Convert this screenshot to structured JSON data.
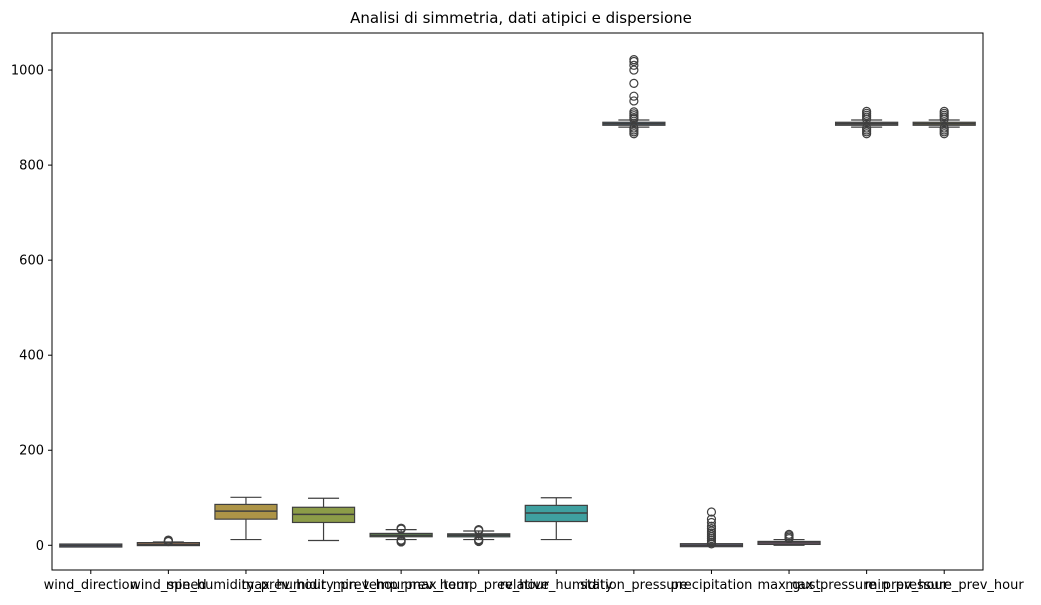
{
  "chart_data": {
    "type": "boxplot",
    "title": "Analisi di simmetria, dati atipici e dispersione",
    "xlabel": "",
    "ylabel": "",
    "ylim": [
      -52,
      1078
    ],
    "yticks": [
      0,
      200,
      400,
      600,
      800,
      1000
    ],
    "grid": false,
    "series": [
      {
        "name": "wind_direction",
        "color": "#5b6f98",
        "stats": {
          "whisker_low": -1,
          "q1": -0.8,
          "median": -0.5,
          "q3": -0.2,
          "whisker_high": 0
        },
        "outliers": []
      },
      {
        "name": "wind_speed",
        "color": "#c0865c",
        "stats": {
          "whisker_low": 0,
          "q1": 1,
          "median": 2,
          "q3": 4,
          "whisker_high": 7
        },
        "outliers": [
          8,
          9,
          10,
          11
        ]
      },
      {
        "name": "min_humidity_prev_hour",
        "color": "#ad9447",
        "stats": {
          "whisker_low": 12,
          "q1": 55,
          "median": 72,
          "q3": 86,
          "whisker_high": 101
        },
        "outliers": []
      },
      {
        "name": "max_humidity_prev_hour",
        "color": "#8c9c48",
        "stats": {
          "whisker_low": 10,
          "q1": 48,
          "median": 65,
          "q3": 80,
          "whisker_high": 99
        },
        "outliers": []
      },
      {
        "name": "min_temp_prev_hour",
        "color": "#6a9a5b",
        "stats": {
          "whisker_low": 12,
          "q1": 18,
          "median": 21,
          "q3": 25,
          "whisker_high": 33
        },
        "outliers": [
          7,
          9,
          11,
          34,
          36
        ]
      },
      {
        "name": "max_temp_prev_hour",
        "color": "#5a9a88",
        "stats": {
          "whisker_low": 12,
          "q1": 18,
          "median": 21,
          "q3": 24,
          "whisker_high": 30
        },
        "outliers": [
          8,
          10,
          12,
          31,
          33
        ]
      },
      {
        "name": "relative_humidity",
        "color": "#3fa0a0",
        "stats": {
          "whisker_low": 12,
          "q1": 50,
          "median": 68,
          "q3": 84,
          "whisker_high": 100
        },
        "outliers": []
      },
      {
        "name": "station_pressure",
        "color": "#5a8fb5",
        "stats": {
          "whisker_low": 880,
          "q1": 884,
          "median": 887,
          "q3": 890,
          "whisker_high": 895
        },
        "outliers": [
          866,
          870,
          874,
          878,
          897,
          900,
          904,
          908,
          912,
          935,
          945,
          972,
          1000,
          1010,
          1018,
          1022
        ]
      },
      {
        "name": "precipitation",
        "color": "#8a7fb5",
        "stats": {
          "whisker_low": 0,
          "q1": 0,
          "median": 0,
          "q3": 0.5,
          "whisker_high": 1
        },
        "outliers": [
          3,
          6,
          10,
          14,
          18,
          22,
          26,
          30,
          35,
          40,
          48,
          55,
          70
        ]
      },
      {
        "name": "max_gust",
        "color": "#b57fa8",
        "stats": {
          "whisker_low": 0,
          "q1": 3,
          "median": 5,
          "q3": 7,
          "whisker_high": 12
        },
        "outliers": [
          14,
          17,
          20,
          23
        ]
      },
      {
        "name": "max_pressure_prev_hour",
        "color": "#8a8a8a",
        "stats": {
          "whisker_low": 880,
          "q1": 884,
          "median": 887,
          "q3": 890,
          "whisker_high": 895
        },
        "outliers": [
          866,
          870,
          874,
          878,
          897,
          901,
          905,
          909,
          913
        ]
      },
      {
        "name": "min_pressure_prev_hour",
        "color": "#a39f5f",
        "stats": {
          "whisker_low": 880,
          "q1": 884,
          "median": 887,
          "q3": 890,
          "whisker_high": 895
        },
        "outliers": [
          866,
          870,
          874,
          878,
          897,
          901,
          905,
          909,
          913
        ]
      }
    ]
  }
}
